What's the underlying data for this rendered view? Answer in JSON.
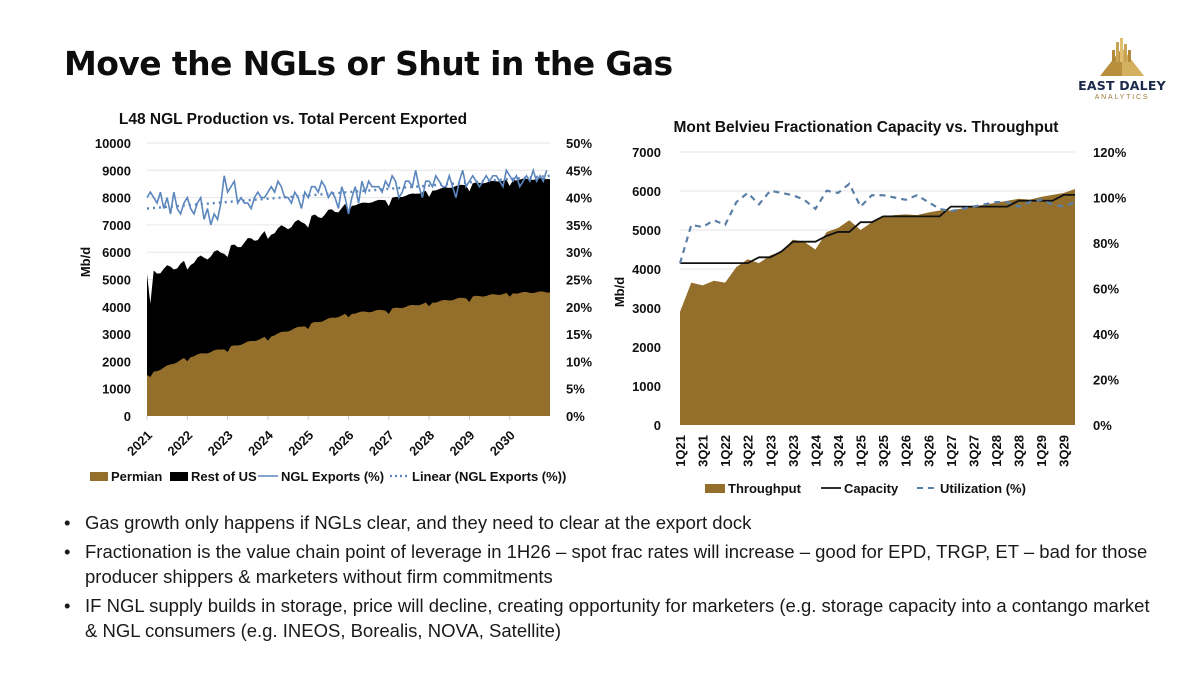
{
  "slide": {
    "title": "Move the NGLs or Shut in the Gas",
    "logo": {
      "icon": "pyramid-skyline-logo-icon",
      "name": "EAST DALEY",
      "subtitle": "ANALYTICS"
    },
    "bullets": [
      "Gas growth only happens if NGLs clear, and they need to clear at the export dock",
      "Fractionation is the value chain point of leverage in 1H26 – spot frac rates will increase – good for EPD, TRGP, ET – bad for those producer shippers & marketers without firm commitments",
      "IF NGL supply builds in storage, price will decline, creating opportunity for marketers (e.g. storage capacity into a contango market & NGL consumers (e.g. INEOS, Borealis, NOVA, Satellite)"
    ],
    "bullet_glyph": "•"
  },
  "colors": {
    "permian": "#946f2b",
    "rest": "#000000",
    "exports": "#5b86bd",
    "capacity": "#111111",
    "utilization": "#5b7fa6",
    "grid": "#e6e6e6"
  },
  "chart_data": [
    {
      "type": "area",
      "title": "L48 NGL Production vs. Total Percent Exported",
      "ylabel": "Mb/d",
      "y2label": "",
      "ylim": [
        0,
        10000
      ],
      "y2lim": [
        0,
        0.5
      ],
      "yticks": [
        "0",
        "1000",
        "2000",
        "3000",
        "4000",
        "5000",
        "6000",
        "7000",
        "8000",
        "9000",
        "10000"
      ],
      "y2ticks": [
        "0%",
        "5%",
        "10%",
        "15%",
        "20%",
        "25%",
        "30%",
        "35%",
        "40%",
        "45%",
        "50%"
      ],
      "x_tick_labels": [
        "2021",
        "2022",
        "2023",
        "2024",
        "2025",
        "2026",
        "2027",
        "2028",
        "2029",
        "2030"
      ],
      "x_start_year": 2021,
      "x_end_year": 2031,
      "grid": true,
      "legend_position": "bottom",
      "legend": [
        "Permian",
        "Rest of US",
        "NGL Exports (%)",
        "Linear (NGL Exports (%))"
      ],
      "series": [
        {
          "name": "Permian",
          "kind": "stacked-area",
          "annual_anchor_values": [
            1500,
            2150,
            2500,
            2900,
            3350,
            3750,
            3900,
            4150,
            4350,
            4500,
            4550
          ]
        },
        {
          "name": "Rest of US",
          "kind": "stacked-area",
          "total_anchor_values": [
            5200,
            5600,
            6100,
            6700,
            7200,
            7700,
            7950,
            8250,
            8500,
            8650,
            8700
          ]
        },
        {
          "name": "NGL Exports (%)",
          "kind": "line",
          "monthly_values": [
            0.4,
            0.41,
            0.4,
            0.39,
            0.41,
            0.38,
            0.4,
            0.37,
            0.41,
            0.38,
            0.37,
            0.39,
            0.4,
            0.38,
            0.37,
            0.39,
            0.4,
            0.36,
            0.38,
            0.35,
            0.37,
            0.36,
            0.39,
            0.44,
            0.41,
            0.42,
            0.43,
            0.39,
            0.4,
            0.39,
            0.39,
            0.38,
            0.4,
            0.41,
            0.4,
            0.4,
            0.41,
            0.42,
            0.41,
            0.43,
            0.42,
            0.4,
            0.4,
            0.39,
            0.41,
            0.4,
            0.38,
            0.41,
            0.4,
            0.42,
            0.42,
            0.41,
            0.43,
            0.42,
            0.4,
            0.41,
            0.4,
            0.38,
            0.42,
            0.4,
            0.37,
            0.4,
            0.42,
            0.39,
            0.43,
            0.41,
            0.43,
            0.42,
            0.42,
            0.42,
            0.41,
            0.43,
            0.42,
            0.44,
            0.43,
            0.4,
            0.41,
            0.43,
            0.43,
            0.42,
            0.45,
            0.42,
            0.4,
            0.43,
            0.43,
            0.42,
            0.44,
            0.43,
            0.42,
            0.42,
            0.44,
            0.42,
            0.4,
            0.43,
            0.45,
            0.42,
            0.43,
            0.44,
            0.43,
            0.42,
            0.43,
            0.44,
            0.43,
            0.44,
            0.44,
            0.43,
            0.42,
            0.45,
            0.44,
            0.43,
            0.44,
            0.42,
            0.43,
            0.44,
            0.43,
            0.45,
            0.43,
            0.44,
            0.43,
            0.45
          ]
        },
        {
          "name": "Linear (NGL Exports (%))",
          "kind": "trendline",
          "start": 0.38,
          "end": 0.44
        }
      ]
    },
    {
      "type": "area",
      "title": "Mont Belvieu Fractionation Capacity vs. Throughput",
      "ylabel": "Mb/d",
      "ylim": [
        0,
        7000
      ],
      "y2lim": [
        0,
        1.2
      ],
      "yticks": [
        "0",
        "1000",
        "2000",
        "3000",
        "4000",
        "5000",
        "6000",
        "7000"
      ],
      "y2ticks": [
        "0%",
        "20%",
        "40%",
        "60%",
        "80%",
        "100%",
        "120%"
      ],
      "categories": [
        "1Q21",
        "2Q21",
        "3Q21",
        "4Q21",
        "1Q22",
        "2Q22",
        "3Q22",
        "4Q22",
        "1Q23",
        "2Q23",
        "3Q23",
        "4Q23",
        "1Q24",
        "2Q24",
        "3Q24",
        "4Q24",
        "1Q25",
        "2Q25",
        "3Q25",
        "4Q25",
        "1Q26",
        "2Q26",
        "3Q26",
        "4Q26",
        "1Q27",
        "2Q27",
        "3Q27",
        "4Q27",
        "1Q28",
        "2Q28",
        "3Q28",
        "4Q28",
        "1Q29",
        "2Q29",
        "3Q29",
        "4Q29"
      ],
      "x_tick_labels": [
        "1Q21",
        "3Q21",
        "1Q22",
        "3Q22",
        "1Q23",
        "3Q23",
        "1Q24",
        "3Q24",
        "1Q25",
        "3Q25",
        "1Q26",
        "3Q26",
        "1Q27",
        "3Q27",
        "1Q28",
        "3Q28",
        "1Q29",
        "3Q29"
      ],
      "grid": true,
      "legend_position": "bottom",
      "legend": [
        "Throughput",
        "Capacity",
        "Utilization (%)"
      ],
      "series": [
        {
          "name": "Throughput",
          "kind": "area",
          "values": [
            2900,
            3650,
            3580,
            3700,
            3650,
            4050,
            4250,
            4150,
            4350,
            4450,
            4750,
            4700,
            4500,
            4950,
            5050,
            5250,
            5000,
            5200,
            5350,
            5380,
            5400,
            5380,
            5450,
            5500,
            5500,
            5550,
            5600,
            5650,
            5700,
            5750,
            5800,
            5780,
            5850,
            5900,
            5950,
            6050
          ]
        },
        {
          "name": "Capacity",
          "kind": "line",
          "values": [
            4150,
            4150,
            4150,
            4150,
            4150,
            4150,
            4150,
            4300,
            4300,
            4450,
            4700,
            4700,
            4700,
            4850,
            4950,
            4950,
            5200,
            5200,
            5350,
            5350,
            5350,
            5350,
            5350,
            5350,
            5600,
            5600,
            5600,
            5600,
            5600,
            5600,
            5750,
            5750,
            5750,
            5750,
            5900,
            5900
          ]
        },
        {
          "name": "Utilization (%)",
          "kind": "dashed-line",
          "axis": "secondary",
          "values": [
            0.71,
            0.88,
            0.87,
            0.9,
            0.88,
            0.98,
            1.02,
            0.97,
            1.03,
            1.02,
            1.01,
            0.99,
            0.95,
            1.03,
            1.02,
            1.06,
            0.96,
            1.01,
            1.01,
            1.0,
            0.99,
            1.01,
            0.98,
            0.95,
            0.94,
            0.95,
            0.96,
            0.97,
            0.98,
            0.98,
            0.96,
            0.98,
            0.99,
            0.97,
            0.96,
            0.98
          ]
        }
      ]
    }
  ]
}
